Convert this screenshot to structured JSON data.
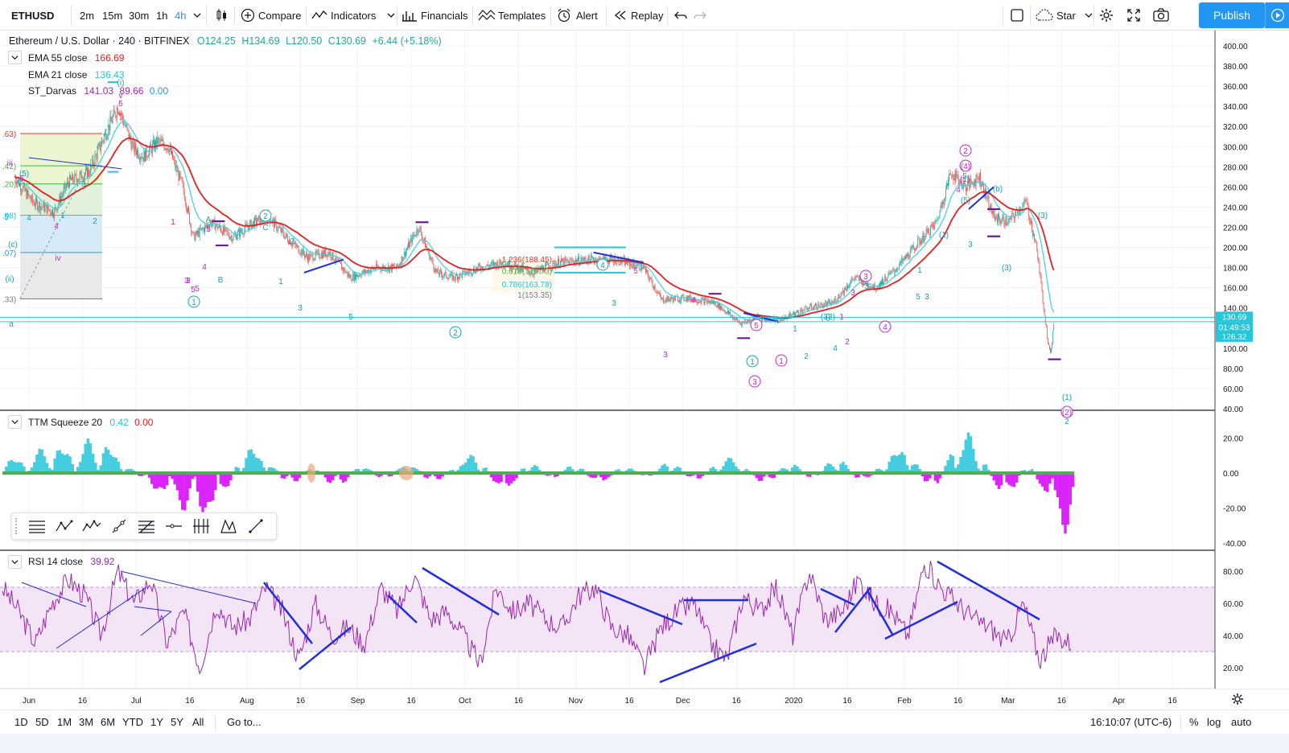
{
  "toolbar": {
    "symbol": "ETHUSD",
    "intervals": [
      "2m",
      "15m",
      "30m",
      "1h",
      "4h"
    ],
    "active_interval": "4h",
    "compare_label": "Compare",
    "indicators_label": "Indicators",
    "financials_label": "Financials",
    "templates_label": "Templates",
    "alert_label": "Alert",
    "replay_label": "Replay",
    "star_label": "Star",
    "publish_label": "Publish"
  },
  "main_legend": {
    "title": "Ethereum / U.S. Dollar · 240 · BITFINEX",
    "open": "O124.25",
    "high": "H134.69",
    "low": "L120.50",
    "close": "C130.69",
    "change": "+6.44 (+5.18%)",
    "indicators": [
      {
        "label": "EMA 55 close",
        "value": "166.69",
        "color": "#e91e1e"
      },
      {
        "label": "EMA 21 close",
        "value": "136.43",
        "color": "#26c6da"
      },
      {
        "label": "ST_Darvas",
        "value": "141.03",
        "value2": "89.66",
        "value3": "0.00",
        "color": "#9c27b0"
      }
    ]
  },
  "colors": {
    "up": "#26a69a",
    "down": "#ef5350",
    "ema55": "#e91e1e",
    "ema21": "#4dd0e1",
    "wave_magenta": "#c026d3",
    "wave_teal": "#17a2b8",
    "trendline": "#1f2ee0",
    "rsi": "#9c27b0",
    "rsi_band": "#f3e5f5",
    "squeeze_pos": "#26c6da",
    "squeeze_neg": "#d500f9",
    "squeeze_dots": "#4caf50",
    "last_price_bg": "#26c6da",
    "accent": "#2196f3"
  },
  "chart_data": [
    {
      "type": "candlestick",
      "pane": "price",
      "symbol": "ETHUSD",
      "ylim": [
        40,
        400
      ],
      "y_ticks": [
        "400.00",
        "380.00",
        "360.00",
        "340.00",
        "320.00",
        "300.00",
        "280.00",
        "260.00",
        "240.00",
        "220.00",
        "200.00",
        "180.00",
        "160.00",
        "140.00",
        "120.00",
        "100.00",
        "80.00",
        "60.00",
        "40.00"
      ],
      "price_path": [
        [
          "2019-05-28",
          270
        ],
        [
          "2019-06-02",
          245
        ],
        [
          "2019-06-08",
          235
        ],
        [
          "2019-06-12",
          265
        ],
        [
          "2019-06-18",
          275
        ],
        [
          "2019-06-22",
          310
        ],
        [
          "2019-06-26",
          340
        ],
        [
          "2019-06-30",
          300
        ],
        [
          "2019-07-03",
          290
        ],
        [
          "2019-07-07",
          305
        ],
        [
          "2019-07-10",
          300
        ],
        [
          "2019-07-14",
          260
        ],
        [
          "2019-07-17",
          210
        ],
        [
          "2019-07-22",
          225
        ],
        [
          "2019-07-28",
          210
        ],
        [
          "2019-08-03",
          225
        ],
        [
          "2019-08-07",
          230
        ],
        [
          "2019-08-12",
          210
        ],
        [
          "2019-08-18",
          190
        ],
        [
          "2019-08-24",
          195
        ],
        [
          "2019-08-30",
          170
        ],
        [
          "2019-09-06",
          180
        ],
        [
          "2019-09-12",
          180
        ],
        [
          "2019-09-18",
          220
        ],
        [
          "2019-09-23",
          175
        ],
        [
          "2019-09-28",
          170
        ],
        [
          "2019-10-05",
          180
        ],
        [
          "2019-10-12",
          185
        ],
        [
          "2019-10-20",
          175
        ],
        [
          "2019-10-27",
          185
        ],
        [
          "2019-11-05",
          188
        ],
        [
          "2019-11-12",
          188
        ],
        [
          "2019-11-20",
          180
        ],
        [
          "2019-11-25",
          148
        ],
        [
          "2019-12-02",
          150
        ],
        [
          "2019-12-10",
          145
        ],
        [
          "2019-12-17",
          125
        ],
        [
          "2019-12-22",
          130
        ],
        [
          "2019-12-28",
          128
        ],
        [
          "2020-01-05",
          140
        ],
        [
          "2020-01-12",
          145
        ],
        [
          "2020-01-18",
          170
        ],
        [
          "2020-01-24",
          160
        ],
        [
          "2020-01-30",
          180
        ],
        [
          "2020-02-05",
          205
        ],
        [
          "2020-02-10",
          225
        ],
        [
          "2020-02-14",
          275
        ],
        [
          "2020-02-18",
          260
        ],
        [
          "2020-02-22",
          270
        ],
        [
          "2020-02-26",
          230
        ],
        [
          "2020-03-01",
          225
        ],
        [
          "2020-03-06",
          245
        ],
        [
          "2020-03-09",
          200
        ],
        [
          "2020-03-12",
          110
        ],
        [
          "2020-03-13",
          95
        ],
        [
          "2020-03-14",
          130.69
        ]
      ],
      "last_price": "130.69",
      "countdown": "01:49:53",
      "second_price": "126.32",
      "x_labels": [
        "Jun",
        "16",
        "Jul",
        "16",
        "Aug",
        "16",
        "Sep",
        "16",
        "Oct",
        "16",
        "Nov",
        "16",
        "Dec",
        "16",
        "2020",
        "16",
        "Feb",
        "16",
        "Mar",
        "16",
        "Apr",
        "16"
      ],
      "fib_levels": [
        ".63)",
        ".42)",
        ".20)",
        ".98)",
        ".07)",
        ".33)"
      ],
      "fib_retracement": [
        "1.236(188.45)",
        "0.618(176.73)",
        "0.786(163.78)",
        "1(153.35)"
      ],
      "wave_labels": [
        "(i)",
        "v",
        "5",
        "iii",
        "(5)",
        "5",
        "3",
        "1",
        "2",
        "4",
        "iv",
        "1",
        "3",
        "5",
        "A",
        "5",
        "4",
        "3",
        "5",
        "2",
        "B",
        "1",
        "2",
        "C",
        "1",
        "2",
        "4",
        "3",
        "5",
        "3",
        "4",
        "3",
        "4",
        "1",
        "2",
        "3",
        "5",
        "1",
        "2",
        "4",
        "3",
        "1",
        "(1)",
        "(3)",
        "1",
        "3",
        "(2)",
        "(4)",
        "5",
        "4",
        "2",
        "(1)",
        "(3)",
        "(5)",
        "3",
        "5",
        "(b)",
        "5",
        "3",
        "(3)",
        "(1)",
        "(2)",
        "2",
        "1",
        "3",
        "4",
        "5",
        "(c)",
        "(ii)",
        "a"
      ]
    },
    {
      "type": "histogram",
      "pane": "squeeze",
      "title": "TTM Squeeze 20",
      "values_display": [
        "0.42",
        "0.00"
      ],
      "ylim": [
        -40,
        40
      ],
      "y_ticks": [
        "20.00",
        "0.00",
        "-20.00",
        "-40.00"
      ],
      "wave_peaks": [
        12,
        8,
        20,
        15,
        24,
        10,
        -8,
        -18,
        -26,
        -30,
        18,
        14,
        -12,
        8,
        -14,
        10,
        -8,
        12,
        -10,
        8,
        14,
        -22,
        12,
        -8,
        10,
        -12,
        8,
        -6,
        12,
        -10,
        10,
        8,
        -12,
        12,
        -8,
        16,
        -10,
        10,
        22,
        -20,
        30,
        18,
        -26,
        12,
        -30,
        -40
      ]
    },
    {
      "type": "line",
      "pane": "rsi",
      "title": "RSI 14 close",
      "value": "39.92",
      "ylim": [
        10,
        90
      ],
      "y_ticks": [
        "80.00",
        "60.00",
        "40.00",
        "20.00"
      ],
      "band": [
        30,
        70
      ],
      "path": [
        70,
        55,
        35,
        60,
        75,
        65,
        40,
        80,
        60,
        75,
        35,
        55,
        20,
        60,
        45,
        50,
        70,
        55,
        25,
        60,
        40,
        45,
        35,
        70,
        55,
        78,
        50,
        55,
        40,
        22,
        70,
        55,
        60,
        50,
        45,
        65,
        70,
        45,
        40,
        20,
        45,
        55,
        60,
        35,
        25,
        65,
        55,
        70,
        40,
        80,
        50,
        55,
        75,
        60,
        55,
        40,
        85,
        70,
        60,
        50,
        45,
        35,
        60,
        25,
        40,
        35
      ]
    }
  ],
  "bottombar": {
    "ranges": [
      "1D",
      "5D",
      "1M",
      "3M",
      "6M",
      "YTD",
      "1Y",
      "5Y",
      "All"
    ],
    "goto_label": "Go to...",
    "clock": "16:10:07 (UTC-6)",
    "percent_label": "%",
    "log_label": "log",
    "auto_label": "auto"
  }
}
